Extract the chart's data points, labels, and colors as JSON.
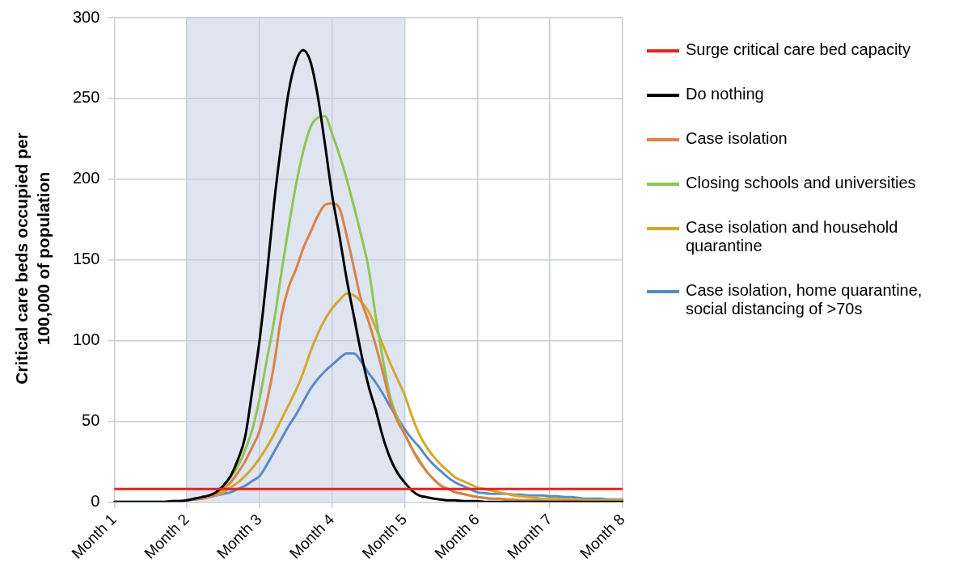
{
  "chart_data": {
    "type": "line",
    "ylabel": "Critical care beds occupied per 100,000 of population",
    "categories": [
      "Month 1",
      null,
      null,
      null,
      null,
      null,
      null,
      null,
      null,
      null,
      "Month 2",
      null,
      null,
      null,
      null,
      null,
      null,
      null,
      null,
      null,
      "Month 3",
      null,
      null,
      null,
      null,
      null,
      null,
      null,
      null,
      null,
      "Month 4",
      null,
      null,
      null,
      null,
      null,
      null,
      null,
      null,
      null,
      "Month 5",
      null,
      null,
      null,
      null,
      null,
      null,
      null,
      null,
      null,
      "Month 6",
      null,
      null,
      null,
      null,
      null,
      null,
      null,
      null,
      null,
      "Month 7",
      null,
      null,
      null,
      null,
      null,
      null,
      null,
      null,
      null,
      "Month 8"
    ],
    "ylim": [
      0,
      300
    ],
    "yticks": [
      0,
      50,
      100,
      150,
      200,
      250,
      300
    ],
    "grid": true,
    "legend": "right",
    "marker": "none",
    "line_style": "solid",
    "bands": [
      {
        "axis": "x",
        "from": "Month 2",
        "to": "Month 5",
        "color": "#dfe4f1"
      }
    ],
    "ref_lines": [
      {
        "axis": "y",
        "value": 8,
        "label": "Surge critical care bed capacity",
        "color": "#e8221b"
      }
    ],
    "series": [
      {
        "name": "Do nothing",
        "color": "#000000",
        "values": [
          0,
          0,
          0,
          0,
          0,
          0,
          0,
          0,
          0.5,
          0.5,
          1,
          2,
          3,
          4,
          6,
          10,
          16,
          26,
          40,
          69,
          100,
          140,
          185,
          222,
          254,
          273,
          280,
          273,
          252,
          222,
          190,
          165,
          138,
          115,
          92,
          72,
          57,
          40,
          27,
          18,
          12,
          7,
          4,
          3,
          2,
          1.5,
          1,
          1,
          0.5,
          0.5,
          0.5,
          0,
          0,
          0,
          0,
          0,
          0,
          0,
          0,
          0,
          0,
          0,
          0,
          0,
          0,
          0,
          0,
          0,
          0,
          0,
          0
        ]
      },
      {
        "name": "Case isolation",
        "color": "#d9824a",
        "values": [
          null,
          null,
          null,
          null,
          null,
          null,
          null,
          null,
          null,
          null,
          1,
          1.5,
          2,
          3,
          5,
          8,
          12,
          18,
          25,
          34,
          44,
          62,
          85,
          115,
          133,
          144,
          157,
          167,
          177,
          184,
          185,
          182,
          165,
          145,
          125,
          112,
          97,
          80,
          62,
          50,
          42,
          33,
          25,
          19,
          14,
          10,
          8,
          6,
          5,
          4,
          3,
          2.5,
          2,
          2,
          1.5,
          1.5,
          1,
          1,
          1,
          0.5,
          0.5,
          0.5,
          0.5,
          0.5,
          0.5,
          0,
          0,
          0,
          0,
          0,
          0
        ]
      },
      {
        "name": "Closing schools and universities",
        "color": "#8dc553",
        "values": [
          null,
          null,
          null,
          null,
          null,
          null,
          null,
          null,
          null,
          null,
          null,
          null,
          null,
          null,
          6,
          10,
          15,
          22,
          32,
          45,
          64,
          88,
          112,
          142,
          170,
          196,
          217,
          232,
          238,
          239,
          228,
          215,
          200,
          183,
          165,
          145,
          115,
          88,
          65,
          52,
          42,
          33,
          26,
          19,
          14,
          10,
          8,
          6,
          5,
          4,
          3,
          2.5,
          2,
          2,
          1.5,
          1.5,
          1,
          1,
          1,
          0.5,
          0.5,
          0.5,
          0.5,
          0.5,
          0.5,
          0,
          0,
          0,
          0,
          0,
          0
        ]
      },
      {
        "name": "Case isolation and household quarantine",
        "color": "#d4a72c",
        "values": [
          null,
          null,
          null,
          null,
          null,
          null,
          null,
          null,
          null,
          null,
          null,
          null,
          null,
          null,
          4,
          6,
          9,
          12,
          16,
          21,
          27,
          34,
          42,
          51,
          60,
          69,
          80,
          93,
          104,
          113,
          120,
          125,
          129,
          128,
          124,
          118,
          108,
          97,
          86,
          76,
          66,
          53,
          42,
          34,
          28,
          23,
          19,
          15,
          13,
          11,
          9,
          8,
          7,
          6,
          5,
          4,
          3.5,
          3,
          2.5,
          2,
          2,
          2,
          1.5,
          1.5,
          1.5,
          1,
          1,
          1,
          1,
          1,
          1
        ]
      },
      {
        "name": "Case isolation, home quarantine, social distancing of >70s",
        "color": "#5a8ac6",
        "values": [
          0,
          0,
          0,
          0,
          0,
          0,
          0,
          0,
          0.5,
          0.5,
          1,
          1.5,
          2,
          3,
          4,
          5,
          6,
          8,
          10,
          13,
          16,
          23,
          31,
          39,
          47,
          54,
          62,
          70,
          76,
          81,
          85,
          89,
          92,
          92,
          87,
          80,
          74,
          67,
          59,
          52,
          45,
          39,
          34,
          28,
          23,
          19,
          15,
          12,
          10,
          8,
          6,
          5.5,
          5,
          5,
          5,
          4.5,
          4.5,
          4,
          4,
          4,
          3.5,
          3.5,
          3,
          3,
          2.5,
          2,
          2,
          2,
          1.5,
          1.5,
          1.5
        ]
      }
    ]
  }
}
